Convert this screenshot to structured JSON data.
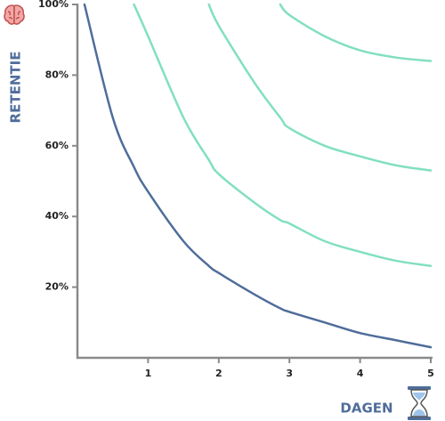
{
  "chart_data": {
    "type": "line",
    "x_label": "DAGEN",
    "y_label": "RETENTIE",
    "x": [
      0.1,
      0.5,
      0.8,
      1,
      1.5,
      1.86,
      2,
      2.5,
      2.87,
      3,
      3.5,
      4,
      4.5,
      5
    ],
    "series": [
      {
        "color": "#4f6d9a",
        "values": [
          100,
          68,
          54,
          47,
          33,
          26,
          24,
          18,
          14,
          13,
          10,
          7,
          5,
          3
        ]
      },
      {
        "color": "#82dfc2",
        "values": [
          null,
          null,
          100,
          91,
          68,
          56,
          52,
          44,
          39,
          38,
          33,
          30,
          27.5,
          26
        ]
      },
      {
        "color": "#82dfc2",
        "values": [
          null,
          null,
          null,
          null,
          null,
          100,
          94,
          78,
          68,
          65,
          60,
          57,
          54.5,
          53
        ]
      },
      {
        "color": "#82dfc2",
        "values": [
          null,
          null,
          null,
          null,
          null,
          null,
          null,
          null,
          100,
          97,
          91,
          87,
          85,
          84
        ]
      }
    ],
    "xlim": [
      0,
      5
    ],
    "xticks": [
      1,
      2,
      3,
      4,
      5
    ],
    "ylim": [
      0,
      100
    ],
    "yticks": [
      {
        "value": 20,
        "label": "20%"
      },
      {
        "value": 40,
        "label": "40%"
      },
      {
        "value": 60,
        "label": "60%"
      },
      {
        "value": 80,
        "label": "80%"
      },
      {
        "value": 100,
        "label": "100%"
      }
    ]
  }
}
